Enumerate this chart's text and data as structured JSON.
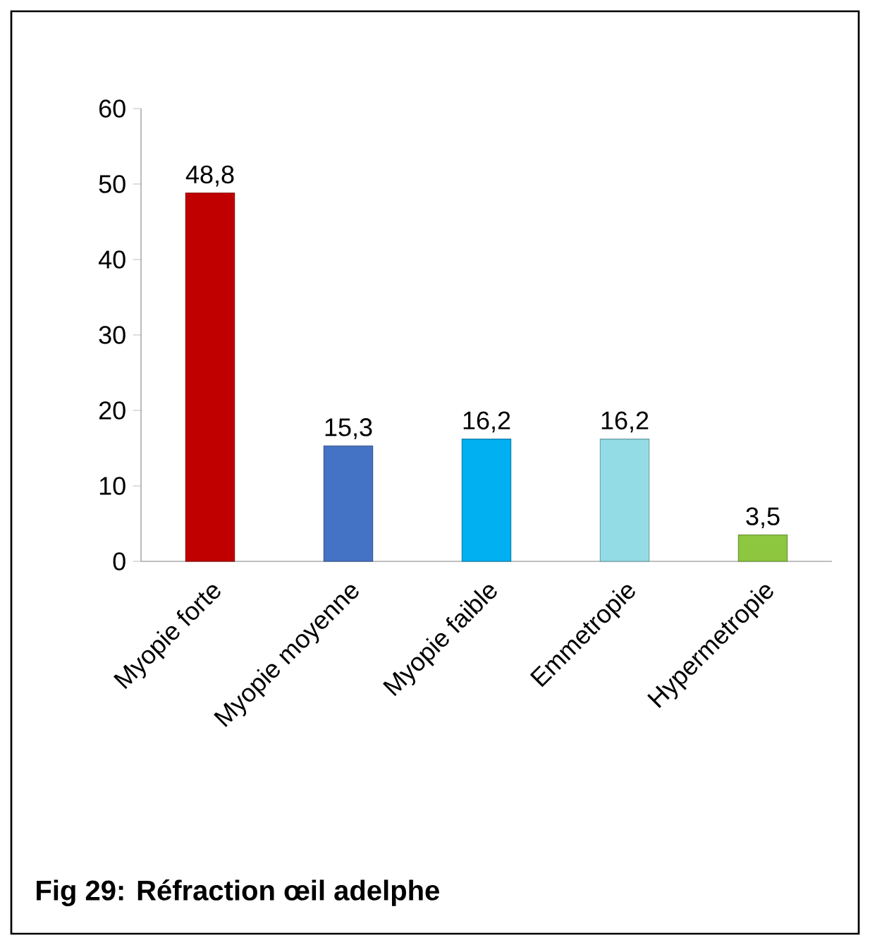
{
  "chart_data": {
    "type": "bar",
    "title": "Fig 29: Réfraction œil adelphe",
    "categories": [
      "Myopie forte",
      "Myopie moyenne",
      "Myopie faible",
      "Emmetropie",
      "Hypermetropie"
    ],
    "values": [
      48.8,
      15.3,
      16.2,
      16.2,
      3.5
    ],
    "colors": [
      "#c00000",
      "#4472c4",
      "#00b0f0",
      "#93dce6",
      "#8dc63f"
    ],
    "value_labels": [
      "48,8",
      "15,3",
      "16,2",
      "16,2",
      "3,5"
    ],
    "ylim": [
      0,
      60
    ],
    "yticks": [
      0,
      10,
      20,
      30,
      40,
      50,
      60
    ]
  }
}
